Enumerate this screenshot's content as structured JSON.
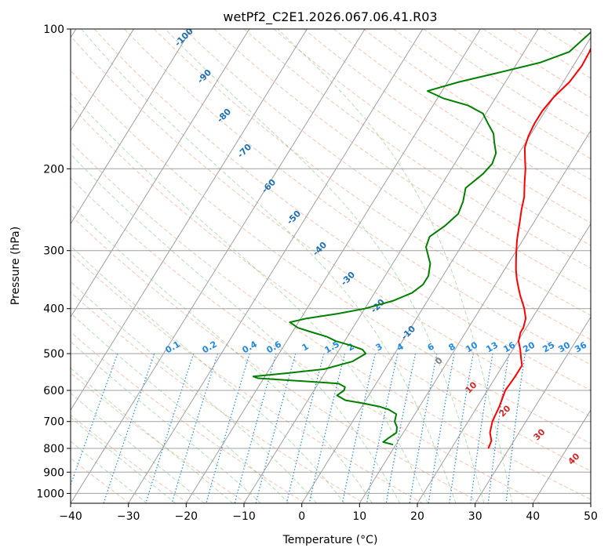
{
  "chart_data": {
    "type": "line",
    "title": "wetPf2_C2E1.2026.067.06.41.R03",
    "xlabel": "Temperature (°C)",
    "ylabel": "Pressure (hPa)",
    "xlim": [
      -40,
      50
    ],
    "ylim": [
      1050,
      100
    ],
    "y_scale": "log",
    "x_ticks": [
      -40,
      -30,
      -20,
      -10,
      0,
      10,
      20,
      30,
      40,
      50
    ],
    "y_ticks": [
      100,
      200,
      300,
      400,
      500,
      600,
      700,
      800,
      900,
      1000
    ],
    "grid": true,
    "series": [
      {
        "color": "#ff0000",
        "points": [
          [
            0.5,
            100
          ],
          [
            0.9,
            105
          ],
          [
            1.3,
            112
          ],
          [
            1.5,
            120
          ],
          [
            1.1,
            130
          ],
          [
            0.0,
            140
          ],
          [
            -0.5,
            150
          ],
          [
            -0.5,
            160
          ],
          [
            -0.2,
            170
          ],
          [
            0.4,
            180
          ],
          [
            1.6,
            190
          ],
          [
            2.8,
            200
          ],
          [
            4.2,
            215
          ],
          [
            5.6,
            230
          ],
          [
            6.5,
            245
          ],
          [
            7.5,
            260
          ],
          [
            8.1,
            270
          ],
          [
            9.0,
            285
          ],
          [
            10.0,
            300
          ],
          [
            11.0,
            315
          ],
          [
            12.0,
            330
          ],
          [
            13.1,
            345
          ],
          [
            14.3,
            360
          ],
          [
            15.5,
            375
          ],
          [
            16.8,
            390
          ],
          [
            17.6,
            400
          ],
          [
            18.9,
            420
          ],
          [
            19.5,
            440
          ],
          [
            19.5,
            450
          ],
          [
            20.1,
            470
          ],
          [
            21.3,
            490
          ],
          [
            22.3,
            510
          ],
          [
            23.3,
            530
          ],
          [
            23.3,
            560
          ],
          [
            23.1,
            600
          ],
          [
            23.8,
            650
          ],
          [
            24.2,
            700
          ],
          [
            25.0,
            740
          ],
          [
            26.1,
            770
          ],
          [
            26.4,
            800
          ]
        ]
      },
      {
        "color": "#008000",
        "points": [
          [
            -0.3,
            100
          ],
          [
            -2.2,
            112
          ],
          [
            -6.0,
            118
          ],
          [
            -12.0,
            124
          ],
          [
            -18.0,
            130
          ],
          [
            -22.5,
            136
          ],
          [
            -19.0,
            141
          ],
          [
            -14.0,
            146
          ],
          [
            -10.5,
            152
          ],
          [
            -8.5,
            160
          ],
          [
            -6.5,
            168
          ],
          [
            -5.5,
            175
          ],
          [
            -4.0,
            185
          ],
          [
            -3.5,
            195
          ],
          [
            -4.0,
            205
          ],
          [
            -5.5,
            220
          ],
          [
            -4.5,
            235
          ],
          [
            -4.0,
            250
          ],
          [
            -5.0,
            265
          ],
          [
            -6.5,
            280
          ],
          [
            -6.0,
            295
          ],
          [
            -3.5,
            320
          ],
          [
            -2.5,
            340
          ],
          [
            -2.5,
            355
          ],
          [
            -3.5,
            370
          ],
          [
            -6.0,
            385
          ],
          [
            -10.0,
            400
          ],
          [
            -14.0,
            410
          ],
          [
            -19.0,
            420
          ],
          [
            -21.5,
            428
          ],
          [
            -19.5,
            440
          ],
          [
            -16.5,
            450
          ],
          [
            -13.5,
            460
          ],
          [
            -11.5,
            470
          ],
          [
            -8.5,
            480
          ],
          [
            -6.0,
            490
          ],
          [
            -5.0,
            500
          ],
          [
            -6.5,
            520
          ],
          [
            -10.5,
            540
          ],
          [
            -16.0,
            550
          ],
          [
            -22.0,
            560
          ],
          [
            -21.0,
            565
          ],
          [
            -14.0,
            572
          ],
          [
            -6.5,
            580
          ],
          [
            -5.0,
            590
          ],
          [
            -4.8,
            600
          ],
          [
            -5.5,
            615
          ],
          [
            -3.5,
            630
          ],
          [
            0.0,
            640
          ],
          [
            3.0,
            650
          ],
          [
            5.0,
            660
          ],
          [
            6.8,
            675
          ],
          [
            7.3,
            700
          ],
          [
            8.3,
            720
          ],
          [
            8.8,
            740
          ],
          [
            8.0,
            760
          ],
          [
            7.5,
            775
          ],
          [
            9.5,
            785
          ]
        ]
      }
    ],
    "dry_adiabat_labels": [
      "-100",
      "-90",
      "-80",
      "-70",
      "-60",
      "-50",
      "-40",
      "-30",
      "-20",
      "-10",
      "0",
      "10",
      "20",
      "30",
      "40"
    ],
    "mixing_ratio_labels": [
      "0.1",
      "0.2",
      "0.4",
      "0.6",
      "1",
      "1.5",
      "2",
      "3",
      "4",
      "6",
      "8",
      "10",
      "13",
      "16",
      "20",
      "25",
      "30",
      "36"
    ],
    "colors": {
      "temperature": "#ff0000",
      "dewpoint": "#008000",
      "dry_adiabats": "#f4a582",
      "moist_adiabats": "#2ca02c",
      "mixing_ratio": "#1e88e5",
      "isotherms": "#a0a0a0"
    }
  }
}
